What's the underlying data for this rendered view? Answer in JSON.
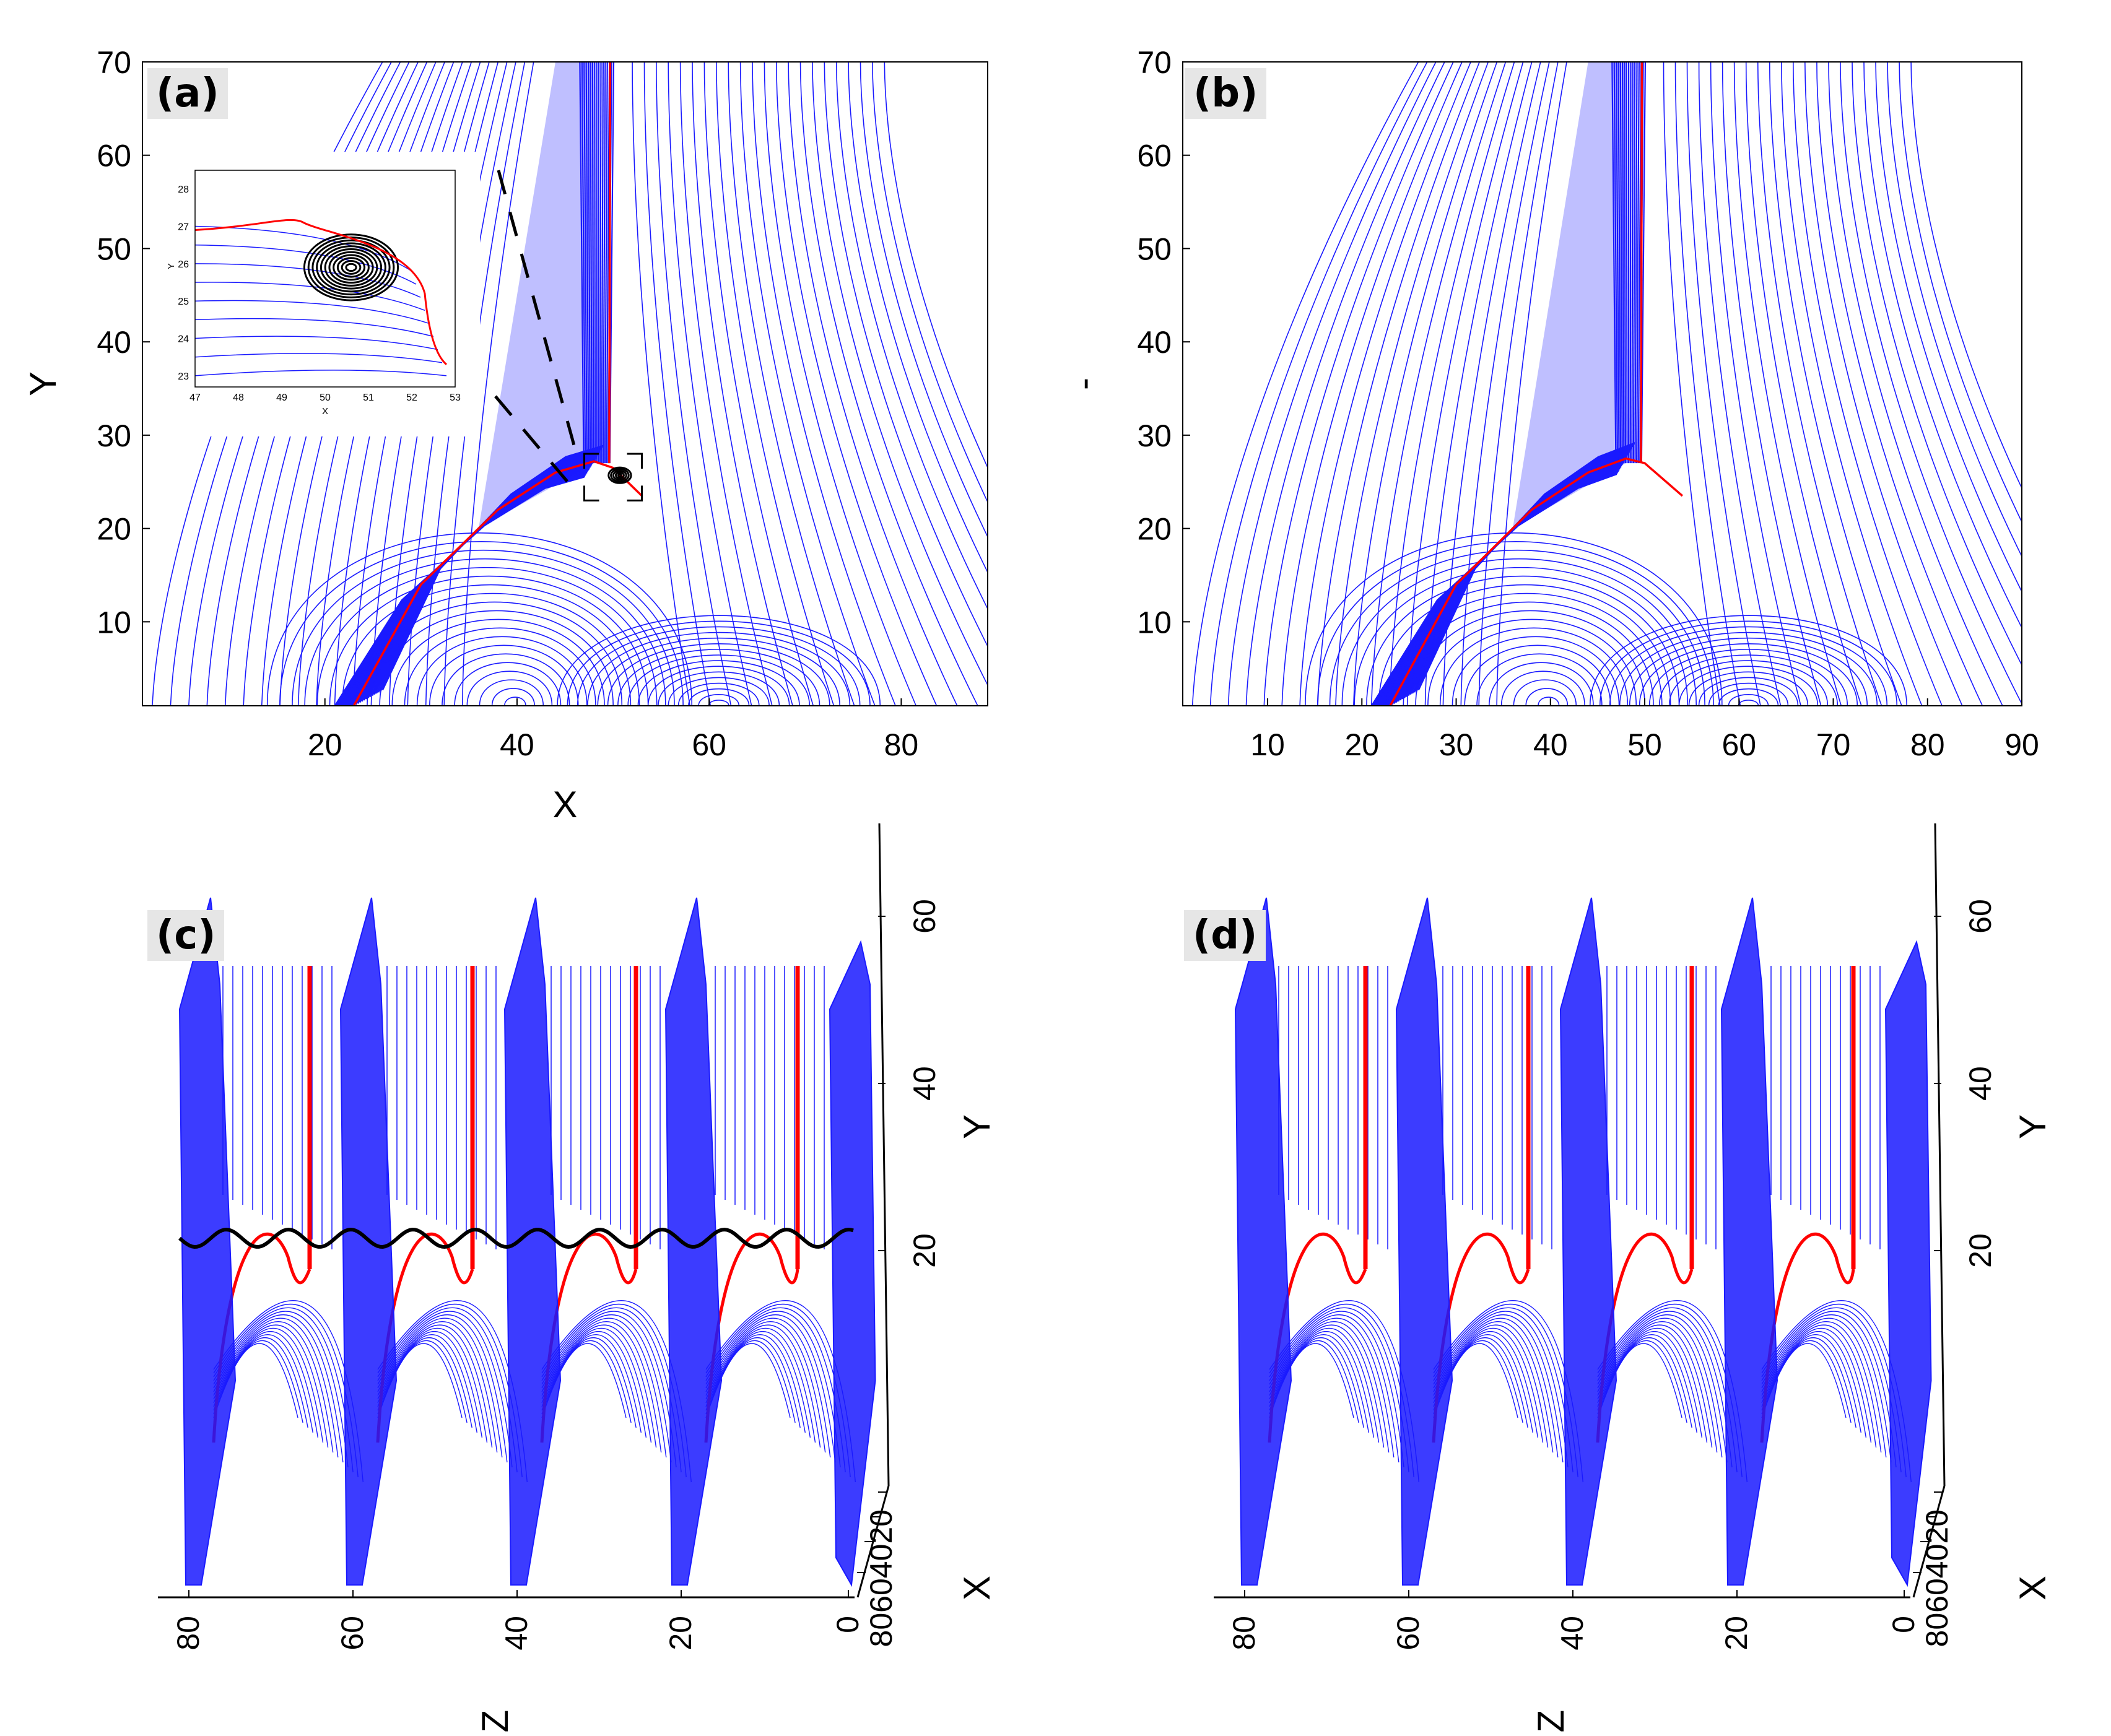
{
  "colors": {
    "field": "#1a1aff",
    "separator": "#ff0000",
    "island": "#000000",
    "axis": "#000000"
  },
  "chart_data": [
    {
      "panel": "(a)",
      "type": "line",
      "xlabel": "X",
      "ylabel": "Y",
      "xlim": [
        1,
        89
      ],
      "ylim": [
        1,
        70
      ],
      "xticks": [
        20,
        40,
        60,
        80
      ],
      "yticks": [
        10,
        20,
        30,
        40,
        50,
        60,
        70
      ],
      "separatrix": {
        "x": [
          23,
          30,
          38,
          44,
          48,
          50,
          53
        ],
        "y": [
          1,
          14,
          22,
          26,
          27.2,
          26.5,
          23.5
        ]
      },
      "island_center": [
        50.7,
        25.7
      ],
      "zoom_box": {
        "x": [
          47,
          53
        ],
        "y": [
          23,
          28
        ]
      },
      "inset": {
        "xlabel": "X",
        "ylabel": "Y",
        "xlim": [
          47,
          53
        ],
        "ylim": [
          22.7,
          28.5
        ],
        "xticks": [
          47,
          48,
          49,
          50,
          51,
          52,
          53
        ],
        "yticks": [
          23,
          24,
          25,
          26,
          27,
          28
        ]
      }
    },
    {
      "panel": "(b)",
      "type": "line",
      "xlabel": "",
      "ylabel": "-",
      "xlim": [
        1,
        90
      ],
      "ylim": [
        1,
        70
      ],
      "xticks": [
        10,
        20,
        30,
        40,
        50,
        60,
        70,
        80,
        90
      ],
      "yticks": [
        10,
        20,
        30,
        40,
        50,
        60,
        70
      ],
      "separatrix": {
        "x": [
          23,
          30,
          38,
          44,
          48,
          50,
          54
        ],
        "y": [
          1,
          14,
          22,
          26,
          27.5,
          27,
          23.5
        ]
      }
    },
    {
      "panel": "(c)",
      "type": "line",
      "zlabel": "Z",
      "ylabel": "Y",
      "xlabel": "X",
      "zticks": [
        80,
        60,
        40,
        20,
        0
      ],
      "yticks": [
        20,
        40,
        60
      ],
      "xticks": [
        20,
        40,
        60,
        80
      ],
      "periods": 4,
      "islands_shown": true
    },
    {
      "panel": "(d)",
      "type": "line",
      "zlabel": "Z",
      "ylabel": "Y",
      "xlabel": "X",
      "zticks": [
        80,
        60,
        40,
        20,
        0
      ],
      "yticks": [
        20,
        40,
        60
      ],
      "xticks": [
        20,
        40,
        60,
        80
      ],
      "periods": 4,
      "islands_shown": false
    }
  ]
}
